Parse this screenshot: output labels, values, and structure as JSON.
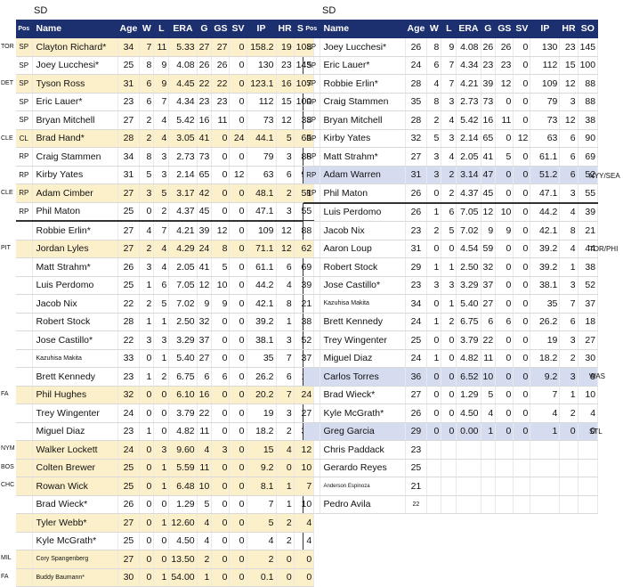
{
  "headers": [
    "Pos",
    "Name",
    "Age",
    "W",
    "L",
    "ERA",
    "G",
    "GS",
    "SV",
    "IP",
    "HR",
    "SO"
  ],
  "left": {
    "team": "SD",
    "rows": [
      {
        "side": "TOR",
        "pos": "SP",
        "name": "Clayton Richard*",
        "age": "34",
        "w": "7",
        "l": "11",
        "era": "5.33",
        "g": "27",
        "gs": "27",
        "sv": "0",
        "ip": "158.2",
        "hr": "19",
        "so": "108",
        "hl": "yellow"
      },
      {
        "side": "",
        "pos": "SP",
        "name": "Joey Lucchesi*",
        "age": "25",
        "w": "8",
        "l": "9",
        "era": "4.08",
        "g": "26",
        "gs": "26",
        "sv": "0",
        "ip": "130",
        "hr": "23",
        "so": "145",
        "hl": ""
      },
      {
        "side": "DET",
        "pos": "SP",
        "name": "Tyson Ross",
        "age": "31",
        "w": "6",
        "l": "9",
        "era": "4.45",
        "g": "22",
        "gs": "22",
        "sv": "0",
        "ip": "123.1",
        "hr": "16",
        "so": "107",
        "hl": "yellow"
      },
      {
        "side": "",
        "pos": "SP",
        "name": "Eric Lauer*",
        "age": "23",
        "w": "6",
        "l": "7",
        "era": "4.34",
        "g": "23",
        "gs": "23",
        "sv": "0",
        "ip": "112",
        "hr": "15",
        "so": "100",
        "hl": ""
      },
      {
        "side": "",
        "pos": "SP",
        "name": "Bryan Mitchell",
        "age": "27",
        "w": "2",
        "l": "4",
        "era": "5.42",
        "g": "16",
        "gs": "11",
        "sv": "0",
        "ip": "73",
        "hr": "12",
        "so": "38",
        "hl": ""
      },
      {
        "side": "CLE",
        "pos": "CL",
        "name": "Brad Hand*",
        "age": "28",
        "w": "2",
        "l": "4",
        "era": "3.05",
        "g": "41",
        "gs": "0",
        "sv": "24",
        "ip": "44.1",
        "hr": "5",
        "so": "65",
        "hl": "yellow"
      },
      {
        "side": "",
        "pos": "RP",
        "name": "Craig Stammen",
        "age": "34",
        "w": "8",
        "l": "3",
        "era": "2.73",
        "g": "73",
        "gs": "0",
        "sv": "0",
        "ip": "79",
        "hr": "3",
        "so": "88",
        "hl": ""
      },
      {
        "side": "",
        "pos": "RP",
        "name": "Kirby Yates",
        "age": "31",
        "w": "5",
        "l": "3",
        "era": "2.14",
        "g": "65",
        "gs": "0",
        "sv": "12",
        "ip": "63",
        "hr": "6",
        "so": "90",
        "hl": ""
      },
      {
        "side": "CLE",
        "pos": "RP",
        "name": "Adam Cimber",
        "age": "27",
        "w": "3",
        "l": "5",
        "era": "3.17",
        "g": "42",
        "gs": "0",
        "sv": "0",
        "ip": "48.1",
        "hr": "2",
        "so": "51",
        "hl": "yellow"
      },
      {
        "side": "",
        "pos": "RP",
        "name": "Phil Maton",
        "age": "25",
        "w": "0",
        "l": "2",
        "era": "4.37",
        "g": "45",
        "gs": "0",
        "sv": "0",
        "ip": "47.1",
        "hr": "3",
        "so": "55",
        "hl": ""
      },
      {
        "side": "",
        "pos": "",
        "name": "Robbie Erlin*",
        "age": "27",
        "w": "4",
        "l": "7",
        "era": "4.21",
        "g": "39",
        "gs": "12",
        "sv": "0",
        "ip": "109",
        "hr": "12",
        "so": "88",
        "hl": "",
        "sep": true
      },
      {
        "side": "PIT",
        "pos": "",
        "name": "Jordan Lyles",
        "age": "27",
        "w": "2",
        "l": "4",
        "era": "4.29",
        "g": "24",
        "gs": "8",
        "sv": "0",
        "ip": "71.1",
        "hr": "12",
        "so": "62",
        "hl": "yellow"
      },
      {
        "side": "",
        "pos": "",
        "name": "Matt Strahm*",
        "age": "26",
        "w": "3",
        "l": "4",
        "era": "2.05",
        "g": "41",
        "gs": "5",
        "sv": "0",
        "ip": "61.1",
        "hr": "6",
        "so": "69",
        "hl": ""
      },
      {
        "side": "",
        "pos": "",
        "name": "Luis Perdomo",
        "age": "25",
        "w": "1",
        "l": "6",
        "era": "7.05",
        "g": "12",
        "gs": "10",
        "sv": "0",
        "ip": "44.2",
        "hr": "4",
        "so": "39",
        "hl": ""
      },
      {
        "side": "",
        "pos": "",
        "name": "Jacob Nix",
        "age": "22",
        "w": "2",
        "l": "5",
        "era": "7.02",
        "g": "9",
        "gs": "9",
        "sv": "0",
        "ip": "42.1",
        "hr": "8",
        "so": "21",
        "hl": ""
      },
      {
        "side": "",
        "pos": "",
        "name": "Robert Stock",
        "age": "28",
        "w": "1",
        "l": "1",
        "era": "2.50",
        "g": "32",
        "gs": "0",
        "sv": "0",
        "ip": "39.2",
        "hr": "1",
        "so": "38",
        "hl": ""
      },
      {
        "side": "",
        "pos": "",
        "name": "Jose Castillo*",
        "age": "22",
        "w": "3",
        "l": "3",
        "era": "3.29",
        "g": "37",
        "gs": "0",
        "sv": "0",
        "ip": "38.1",
        "hr": "3",
        "so": "52",
        "hl": ""
      },
      {
        "side": "",
        "pos": "",
        "name": "Kazuhisa Makita",
        "age": "33",
        "w": "0",
        "l": "1",
        "era": "5.40",
        "g": "27",
        "gs": "0",
        "sv": "0",
        "ip": "35",
        "hr": "7",
        "so": "37",
        "hl": "",
        "small": true
      },
      {
        "side": "",
        "pos": "",
        "name": "Brett Kennedy",
        "age": "23",
        "w": "1",
        "l": "2",
        "era": "6.75",
        "g": "6",
        "gs": "6",
        "sv": "0",
        "ip": "26.2",
        "hr": "6",
        "so": "18",
        "hl": ""
      },
      {
        "side": "FA",
        "pos": "",
        "name": "Phil Hughes",
        "age": "32",
        "w": "0",
        "l": "0",
        "era": "6.10",
        "g": "16",
        "gs": "0",
        "sv": "0",
        "ip": "20.2",
        "hr": "7",
        "so": "24",
        "hl": "yellow"
      },
      {
        "side": "",
        "pos": "",
        "name": "Trey Wingenter",
        "age": "24",
        "w": "0",
        "l": "0",
        "era": "3.79",
        "g": "22",
        "gs": "0",
        "sv": "0",
        "ip": "19",
        "hr": "3",
        "so": "27",
        "hl": ""
      },
      {
        "side": "",
        "pos": "",
        "name": "Miguel Diaz",
        "age": "23",
        "w": "1",
        "l": "0",
        "era": "4.82",
        "g": "11",
        "gs": "0",
        "sv": "0",
        "ip": "18.2",
        "hr": "2",
        "so": "30",
        "hl": ""
      },
      {
        "side": "NYM",
        "pos": "",
        "name": "Walker Lockett",
        "age": "24",
        "w": "0",
        "l": "3",
        "era": "9.60",
        "g": "4",
        "gs": "3",
        "sv": "0",
        "ip": "15",
        "hr": "4",
        "so": "12",
        "hl": "yellow"
      },
      {
        "side": "BOS",
        "pos": "",
        "name": "Colten Brewer",
        "age": "25",
        "w": "0",
        "l": "1",
        "era": "5.59",
        "g": "11",
        "gs": "0",
        "sv": "0",
        "ip": "9.2",
        "hr": "0",
        "so": "10",
        "hl": "yellow"
      },
      {
        "side": "CHC",
        "pos": "",
        "name": "Rowan Wick",
        "age": "25",
        "w": "0",
        "l": "1",
        "era": "6.48",
        "g": "10",
        "gs": "0",
        "sv": "0",
        "ip": "8.1",
        "hr": "1",
        "so": "7",
        "hl": "yellow"
      },
      {
        "side": "",
        "pos": "",
        "name": "Brad Wieck*",
        "age": "26",
        "w": "0",
        "l": "0",
        "era": "1.29",
        "g": "5",
        "gs": "0",
        "sv": "0",
        "ip": "7",
        "hr": "1",
        "so": "10",
        "hl": ""
      },
      {
        "side": "",
        "pos": "",
        "name": "Tyler Webb*",
        "age": "27",
        "w": "0",
        "l": "1",
        "era": "12.60",
        "g": "4",
        "gs": "0",
        "sv": "0",
        "ip": "5",
        "hr": "2",
        "so": "4",
        "hl": "yellow"
      },
      {
        "side": "",
        "pos": "",
        "name": "Kyle McGrath*",
        "age": "25",
        "w": "0",
        "l": "0",
        "era": "4.50",
        "g": "4",
        "gs": "0",
        "sv": "0",
        "ip": "4",
        "hr": "2",
        "so": "4",
        "hl": ""
      },
      {
        "side": "MIL",
        "pos": "",
        "name": "Cory Spangenberg",
        "age": "27",
        "w": "0",
        "l": "0",
        "era": "13.50",
        "g": "2",
        "gs": "0",
        "sv": "0",
        "ip": "2",
        "hr": "0",
        "so": "0",
        "hl": "yellow",
        "small": true
      },
      {
        "side": "FA",
        "pos": "",
        "name": "Buddy Baumann*",
        "age": "30",
        "w": "0",
        "l": "1",
        "era": "54.00",
        "g": "1",
        "gs": "0",
        "sv": "0",
        "ip": "0.1",
        "hr": "0",
        "so": "0",
        "hl": "yellow",
        "small": true
      }
    ]
  },
  "right": {
    "team": "SD",
    "rows": [
      {
        "side": "",
        "pos": "SP",
        "name": "Joey Lucchesi*",
        "age": "26",
        "w": "8",
        "l": "9",
        "era": "4.08",
        "g": "26",
        "gs": "26",
        "sv": "0",
        "ip": "130",
        "hr": "23",
        "so": "145",
        "hl": ""
      },
      {
        "side": "",
        "pos": "SP",
        "name": "Eric Lauer*",
        "age": "24",
        "w": "6",
        "l": "7",
        "era": "4.34",
        "g": "23",
        "gs": "23",
        "sv": "0",
        "ip": "112",
        "hr": "15",
        "so": "100",
        "hl": ""
      },
      {
        "side": "",
        "pos": "SP",
        "name": "Robbie Erlin*",
        "age": "28",
        "w": "4",
        "l": "7",
        "era": "4.21",
        "g": "39",
        "gs": "12",
        "sv": "0",
        "ip": "109",
        "hr": "12",
        "so": "88",
        "hl": ""
      },
      {
        "side": "",
        "pos": "RP",
        "name": "Craig Stammen",
        "age": "35",
        "w": "8",
        "l": "3",
        "era": "2.73",
        "g": "73",
        "gs": "0",
        "sv": "0",
        "ip": "79",
        "hr": "3",
        "so": "88",
        "hl": ""
      },
      {
        "side": "",
        "pos": "SP",
        "name": "Bryan Mitchell",
        "age": "28",
        "w": "2",
        "l": "4",
        "era": "5.42",
        "g": "16",
        "gs": "11",
        "sv": "0",
        "ip": "73",
        "hr": "12",
        "so": "38",
        "hl": ""
      },
      {
        "side": "",
        "pos": "RP",
        "name": "Kirby Yates",
        "age": "32",
        "w": "5",
        "l": "3",
        "era": "2.14",
        "g": "65",
        "gs": "0",
        "sv": "12",
        "ip": "63",
        "hr": "6",
        "so": "90",
        "hl": ""
      },
      {
        "side": "",
        "pos": "RP",
        "name": "Matt Strahm*",
        "age": "27",
        "w": "3",
        "l": "4",
        "era": "2.05",
        "g": "41",
        "gs": "5",
        "sv": "0",
        "ip": "61.1",
        "hr": "6",
        "so": "69",
        "hl": ""
      },
      {
        "side": "NYY/SEA",
        "pos": "RP",
        "name": "Adam Warren",
        "age": "31",
        "w": "3",
        "l": "2",
        "era": "3.14",
        "g": "47",
        "gs": "0",
        "sv": "0",
        "ip": "51.2",
        "hr": "6",
        "so": "52",
        "hl": "blue"
      },
      {
        "side": "",
        "pos": "RP",
        "name": "Phil Maton",
        "age": "26",
        "w": "0",
        "l": "2",
        "era": "4.37",
        "g": "45",
        "gs": "0",
        "sv": "0",
        "ip": "47.1",
        "hr": "3",
        "so": "55",
        "hl": ""
      },
      {
        "side": "",
        "pos": "",
        "name": "Luis Perdomo",
        "age": "26",
        "w": "1",
        "l": "6",
        "era": "7.05",
        "g": "12",
        "gs": "10",
        "sv": "0",
        "ip": "44.2",
        "hr": "4",
        "so": "39",
        "hl": "",
        "sep": true
      },
      {
        "side": "",
        "pos": "",
        "name": "Jacob Nix",
        "age": "23",
        "w": "2",
        "l": "5",
        "era": "7.02",
        "g": "9",
        "gs": "9",
        "sv": "0",
        "ip": "42.1",
        "hr": "8",
        "so": "21",
        "hl": ""
      },
      {
        "side": "TOR/PHI",
        "pos": "",
        "name": "Aaron Loup",
        "age": "31",
        "w": "0",
        "l": "0",
        "era": "4.54",
        "g": "59",
        "gs": "0",
        "sv": "0",
        "ip": "39.2",
        "hr": "4",
        "so": "44",
        "hl": ""
      },
      {
        "side": "",
        "pos": "",
        "name": "Robert Stock",
        "age": "29",
        "w": "1",
        "l": "1",
        "era": "2.50",
        "g": "32",
        "gs": "0",
        "sv": "0",
        "ip": "39.2",
        "hr": "1",
        "so": "38",
        "hl": ""
      },
      {
        "side": "",
        "pos": "",
        "name": "Jose Castillo*",
        "age": "23",
        "w": "3",
        "l": "3",
        "era": "3.29",
        "g": "37",
        "gs": "0",
        "sv": "0",
        "ip": "38.1",
        "hr": "3",
        "so": "52",
        "hl": ""
      },
      {
        "side": "",
        "pos": "",
        "name": "Kazuhisa Makita",
        "age": "34",
        "w": "0",
        "l": "1",
        "era": "5.40",
        "g": "27",
        "gs": "0",
        "sv": "0",
        "ip": "35",
        "hr": "7",
        "so": "37",
        "hl": "",
        "small": true
      },
      {
        "side": "",
        "pos": "",
        "name": "Brett Kennedy",
        "age": "24",
        "w": "1",
        "l": "2",
        "era": "6.75",
        "g": "6",
        "gs": "6",
        "sv": "0",
        "ip": "26.2",
        "hr": "6",
        "so": "18",
        "hl": ""
      },
      {
        "side": "",
        "pos": "",
        "name": "Trey Wingenter",
        "age": "25",
        "w": "0",
        "l": "0",
        "era": "3.79",
        "g": "22",
        "gs": "0",
        "sv": "0",
        "ip": "19",
        "hr": "3",
        "so": "27",
        "hl": ""
      },
      {
        "side": "",
        "pos": "",
        "name": "Miguel Diaz",
        "age": "24",
        "w": "1",
        "l": "0",
        "era": "4.82",
        "g": "11",
        "gs": "0",
        "sv": "0",
        "ip": "18.2",
        "hr": "2",
        "so": "30",
        "hl": ""
      },
      {
        "side": "WAS",
        "pos": "",
        "name": "Carlos Torres",
        "age": "36",
        "w": "0",
        "l": "0",
        "era": "6.52",
        "g": "10",
        "gs": "0",
        "sv": "0",
        "ip": "9.2",
        "hr": "3",
        "so": "9",
        "hl": "blue"
      },
      {
        "side": "",
        "pos": "",
        "name": "Brad Wieck*",
        "age": "27",
        "w": "0",
        "l": "0",
        "era": "1.29",
        "g": "5",
        "gs": "0",
        "sv": "0",
        "ip": "7",
        "hr": "1",
        "so": "10",
        "hl": ""
      },
      {
        "side": "",
        "pos": "",
        "name": "Kyle McGrath*",
        "age": "26",
        "w": "0",
        "l": "0",
        "era": "4.50",
        "g": "4",
        "gs": "0",
        "sv": "0",
        "ip": "4",
        "hr": "2",
        "so": "4",
        "hl": ""
      },
      {
        "side": "STL",
        "pos": "",
        "name": "Greg Garcia",
        "age": "29",
        "w": "0",
        "l": "0",
        "era": "0.00",
        "g": "1",
        "gs": "0",
        "sv": "0",
        "ip": "1",
        "hr": "0",
        "so": "0",
        "hl": "blue"
      },
      {
        "side": "",
        "pos": "",
        "name": "Chris Paddack",
        "age": "23",
        "w": "",
        "l": "",
        "era": "",
        "g": "",
        "gs": "",
        "sv": "",
        "ip": "",
        "hr": "",
        "so": "",
        "hl": ""
      },
      {
        "side": "",
        "pos": "",
        "name": "Gerardo Reyes",
        "age": "25",
        "w": "",
        "l": "",
        "era": "",
        "g": "",
        "gs": "",
        "sv": "",
        "ip": "",
        "hr": "",
        "so": "",
        "hl": ""
      },
      {
        "side": "",
        "pos": "",
        "name": "Anderson Espinoza",
        "age": "21",
        "w": "",
        "l": "",
        "era": "",
        "g": "",
        "gs": "",
        "sv": "",
        "ip": "",
        "hr": "",
        "so": "",
        "hl": "",
        "tiny": true
      },
      {
        "side": "",
        "pos": "",
        "name": "Pedro Avila",
        "age": "22",
        "w": "",
        "l": "",
        "era": "",
        "g": "",
        "gs": "",
        "sv": "",
        "ip": "",
        "hr": "",
        "so": "",
        "hl": "",
        "smallage": true
      }
    ]
  },
  "colors": {
    "header_bg": "#1c2f6e",
    "highlight_yellow": "#fcf0cb",
    "highlight_blue": "#d6dcef"
  }
}
